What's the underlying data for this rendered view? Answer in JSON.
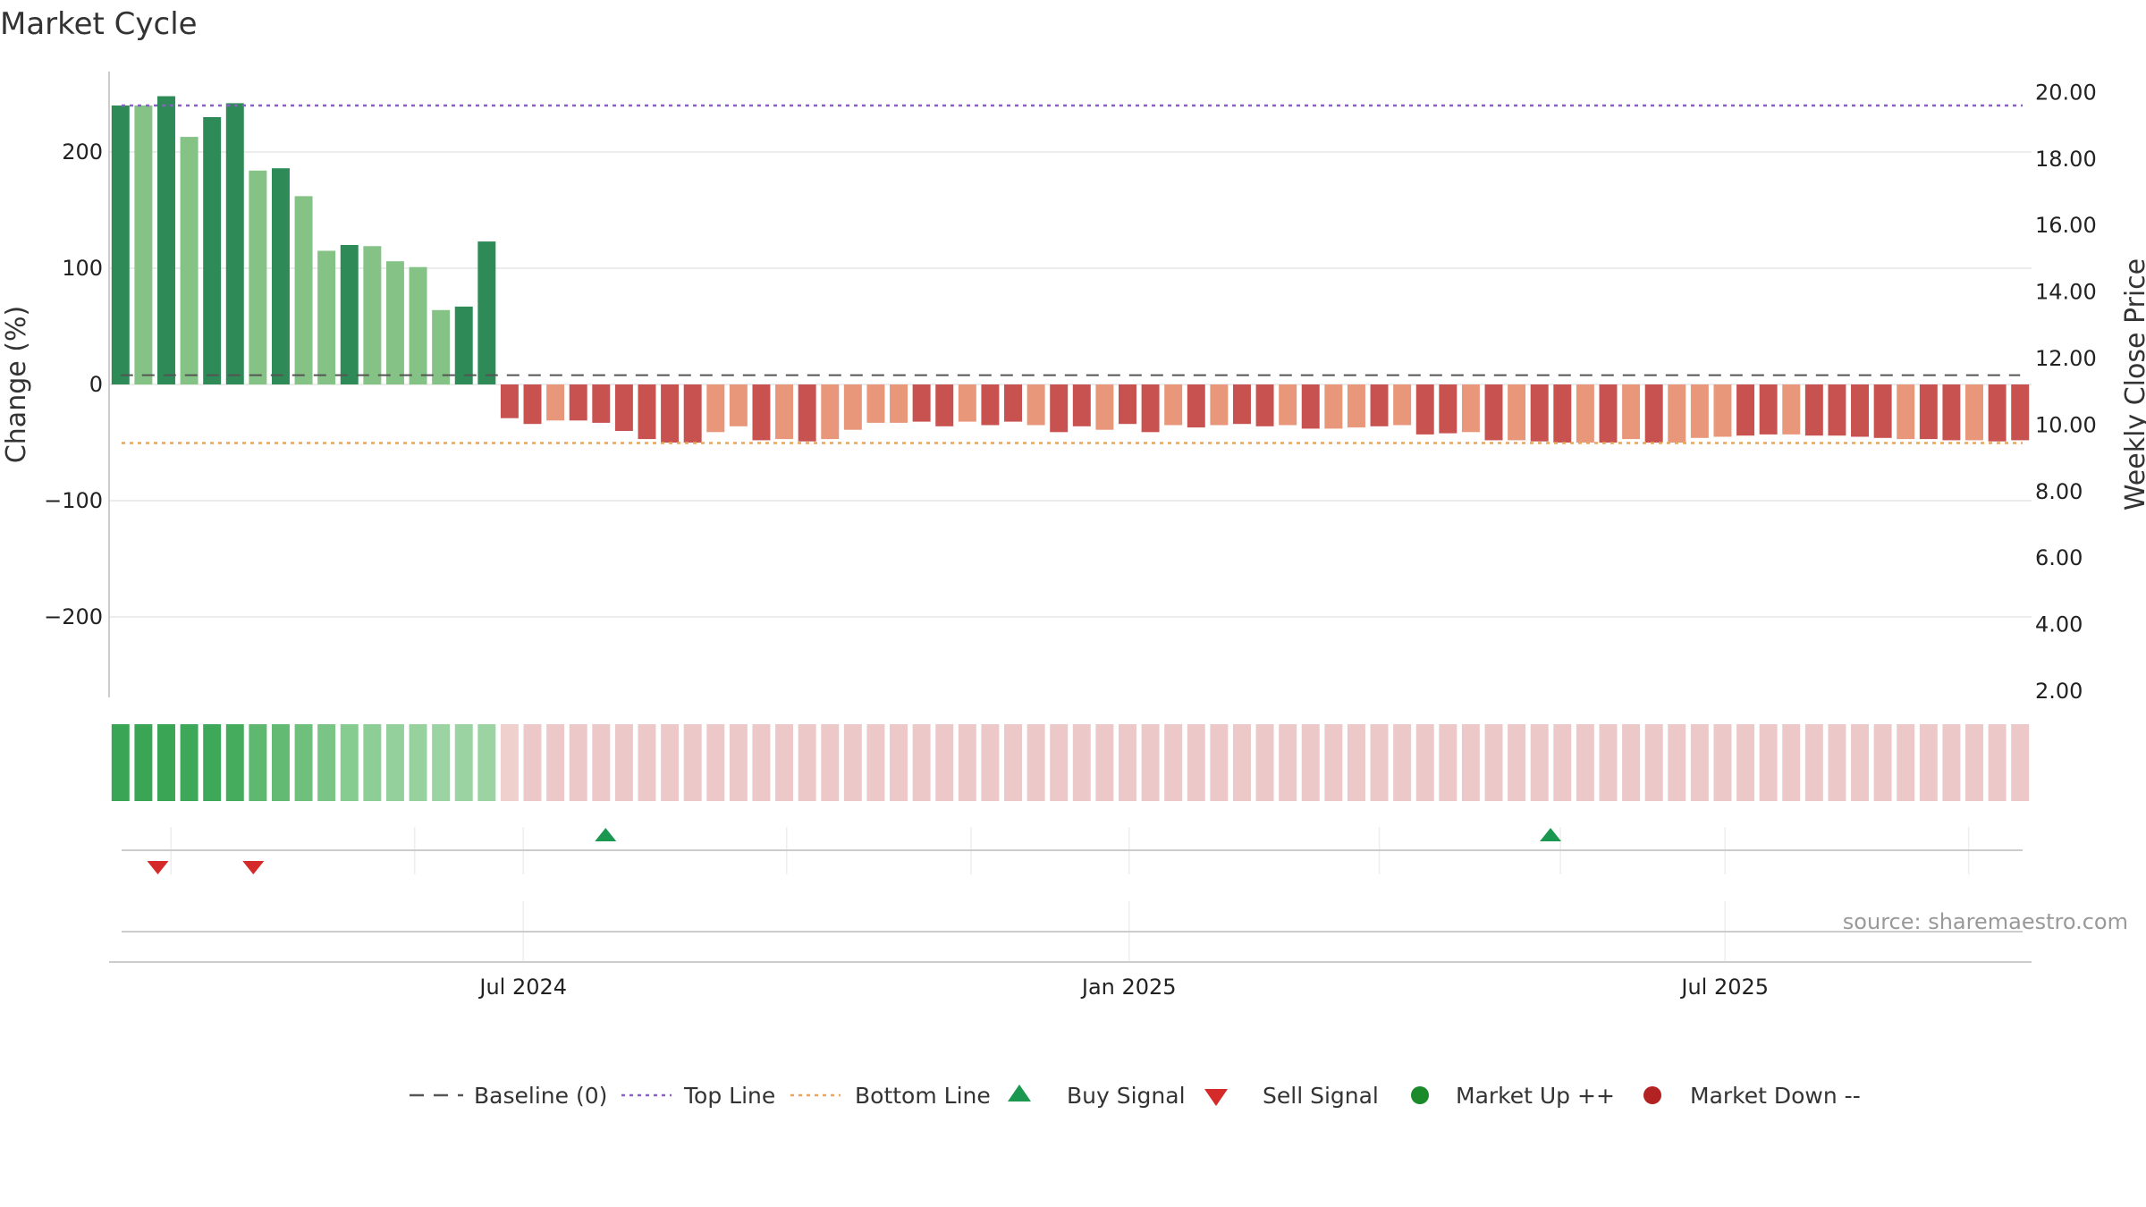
{
  "chart_data": {
    "type": "bar",
    "title": "Market Cycle",
    "left_axis": {
      "label": "Change (%)",
      "range": [
        -270,
        270
      ],
      "ticks": [
        200,
        100,
        0,
        -100,
        -200
      ],
      "tick_labels": [
        "200",
        "100",
        "0",
        "−100",
        "−200"
      ]
    },
    "right_axis": {
      "label": "Weekly Close Price",
      "range": [
        1.6,
        20.6
      ],
      "ticks": [
        20,
        18,
        16,
        14,
        12,
        10,
        8,
        6,
        4,
        2
      ],
      "tick_labels": [
        "20.00",
        "18.00",
        "16.00",
        "14.00",
        "12.00",
        "10.00",
        "8.00",
        "6.00",
        "4.00",
        "2.00"
      ]
    },
    "x_axis": {
      "start": "2024-03-01",
      "end": "2025-09-12",
      "tick_dates": [
        "2024-07-01",
        "2025-01-01",
        "2025-07-01"
      ],
      "tick_labels": [
        "Jul 2024",
        "Jan 2025",
        "Jul 2025"
      ]
    },
    "reference_lines": {
      "baseline": 0,
      "top_line": 240,
      "bottom_line": -50
    },
    "weeks": [
      "2024-03-01",
      "2024-03-08",
      "2024-03-15",
      "2024-03-22",
      "2024-03-29",
      "2024-04-05",
      "2024-04-12",
      "2024-04-19",
      "2024-04-26",
      "2024-05-03",
      "2024-05-10",
      "2024-05-17",
      "2024-05-24",
      "2024-05-31",
      "2024-06-07",
      "2024-06-14",
      "2024-06-21",
      "2024-06-28",
      "2024-07-05",
      "2024-07-12",
      "2024-07-19",
      "2024-07-26",
      "2024-08-02",
      "2024-08-09",
      "2024-08-16",
      "2024-08-23",
      "2024-08-30",
      "2024-09-06",
      "2024-09-13",
      "2024-09-20",
      "2024-09-27",
      "2024-10-04",
      "2024-10-11",
      "2024-10-18",
      "2024-10-25",
      "2024-11-01",
      "2024-11-08",
      "2024-11-15",
      "2024-11-22",
      "2024-11-29",
      "2024-12-06",
      "2024-12-13",
      "2024-12-20",
      "2024-12-27",
      "2025-01-03",
      "2025-01-10",
      "2025-01-17",
      "2025-01-24",
      "2025-01-31",
      "2025-02-07",
      "2025-02-14",
      "2025-02-21",
      "2025-02-28",
      "2025-03-07",
      "2025-03-14",
      "2025-03-21",
      "2025-03-28",
      "2025-04-04",
      "2025-04-11",
      "2025-04-18",
      "2025-04-25",
      "2025-05-02",
      "2025-05-09",
      "2025-05-16",
      "2025-05-23",
      "2025-05-30",
      "2025-06-06",
      "2025-06-13",
      "2025-06-20",
      "2025-06-27",
      "2025-07-04",
      "2025-07-11",
      "2025-07-18",
      "2025-07-25",
      "2025-08-01",
      "2025-08-08",
      "2025-08-15",
      "2025-08-22",
      "2025-08-29",
      "2025-09-05",
      "2025-09-12",
      "2025-09-19",
      "2025-09-26",
      "2025-10-03"
    ],
    "change_pct": [
      240,
      240,
      248,
      213,
      230,
      242,
      184,
      186,
      162,
      115,
      120,
      119,
      106,
      101,
      64,
      67,
      123,
      -29,
      -34,
      -31,
      -31,
      -33,
      -40,
      -47,
      -50,
      -50,
      -41,
      -36,
      -48,
      -47,
      -49,
      -47,
      -39,
      -33,
      -33,
      -32,
      -36,
      -32,
      -35,
      -32,
      -35,
      -41,
      -36,
      -39,
      -34,
      -41,
      -35,
      -37,
      -35,
      -34,
      -36,
      -35,
      -38,
      -38,
      -37,
      -36,
      -35,
      -43,
      -42,
      -41,
      -48,
      -48,
      -49,
      -50,
      -50,
      -50,
      -47,
      -50,
      -50,
      -46,
      -45,
      -44,
      -43,
      -43,
      -44,
      -44,
      -45,
      -46,
      -47,
      -47,
      -48,
      -48,
      -49,
      -48
    ],
    "bar_strength": [
      "strong",
      "light",
      "strong",
      "light",
      "strong",
      "strong",
      "light",
      "strong",
      "light",
      "light",
      "strong",
      "light",
      "light",
      "light",
      "light",
      "strong",
      "strong",
      "dark",
      "dark",
      "light",
      "dark",
      "dark",
      "dark",
      "dark",
      "dark",
      "dark",
      "light",
      "light",
      "dark",
      "light",
      "dark",
      "light",
      "light",
      "light",
      "light",
      "dark",
      "dark",
      "light",
      "dark",
      "dark",
      "light",
      "dark",
      "dark",
      "light",
      "dark",
      "dark",
      "light",
      "dark",
      "light",
      "dark",
      "dark",
      "light",
      "dark",
      "light",
      "light",
      "dark",
      "light",
      "dark",
      "dark",
      "light",
      "dark",
      "light",
      "dark",
      "dark",
      "light",
      "dark",
      "light",
      "dark",
      "light",
      "light",
      "light",
      "dark",
      "dark",
      "light",
      "dark",
      "dark",
      "dark",
      "dark",
      "light",
      "dark",
      "dark",
      "light",
      "dark",
      "dark"
    ],
    "weekly_close_price": [
      11.5,
      11.5,
      11.5,
      11.5,
      11.5,
      11.5,
      11.5,
      11.5,
      11.5,
      11.5,
      11.5,
      11.5,
      11.5,
      11.5,
      11.5,
      11.5,
      11.5,
      11.5,
      11.5,
      11.5,
      11.5,
      11.5,
      11.5,
      11.5,
      11.5,
      11.5,
      11.5,
      11.5,
      11.5,
      11.5,
      11.5,
      11.5,
      11.5,
      11.5,
      11.5,
      11.5,
      11.5,
      11.5,
      11.5,
      11.5,
      11.5,
      11.5,
      11.5,
      11.5,
      11.5,
      11.5,
      11.5,
      11.5,
      11.5,
      11.5,
      11.5,
      11.5,
      11.5,
      11.5,
      11.5,
      11.5,
      11.5,
      11.5,
      11.5,
      11.5,
      11.5,
      11.5,
      11.5,
      11.5,
      11.5,
      11.5,
      11.5,
      11.5,
      11.5,
      11.5,
      11.5,
      11.5,
      11.5,
      11.5,
      11.5,
      11.5,
      11.5,
      11.5,
      11.5,
      11.5,
      11.5,
      11.5,
      11.5,
      11.5
    ],
    "strength_strip": {
      "green_weeks": 17,
      "red_weeks": 67
    },
    "signals": [
      {
        "type": "sell",
        "date": "2024-03-12"
      },
      {
        "type": "sell",
        "date": "2024-04-10"
      },
      {
        "type": "buy",
        "date": "2024-07-26"
      },
      {
        "type": "buy",
        "date": "2025-05-09"
      }
    ],
    "colors": {
      "bar_green_strong": "#2e8b57",
      "bar_green_light": "#85c285",
      "bar_red_dark": "#c85250",
      "bar_red_light": "#e8977a",
      "top_line": "#8a5fc6",
      "bottom_line": "#e8a65a",
      "buy": "#1a9850",
      "sell": "#d42a2a",
      "market_up": "#1a8a2a",
      "market_down": "#b22222",
      "strip_red": "#ecc8c8"
    },
    "legend": [
      {
        "key": "baseline",
        "label": "Baseline (0)"
      },
      {
        "key": "top",
        "label": "Top Line"
      },
      {
        "key": "bottom",
        "label": "Bottom Line"
      },
      {
        "key": "buy",
        "label": "Buy Signal"
      },
      {
        "key": "sell",
        "label": "Sell Signal"
      },
      {
        "key": "up",
        "label": "Market Up ++"
      },
      {
        "key": "down",
        "label": "Market Down --"
      }
    ],
    "legend_position": "bottom-center",
    "grid": true,
    "source": "source: sharemaestro.com"
  }
}
